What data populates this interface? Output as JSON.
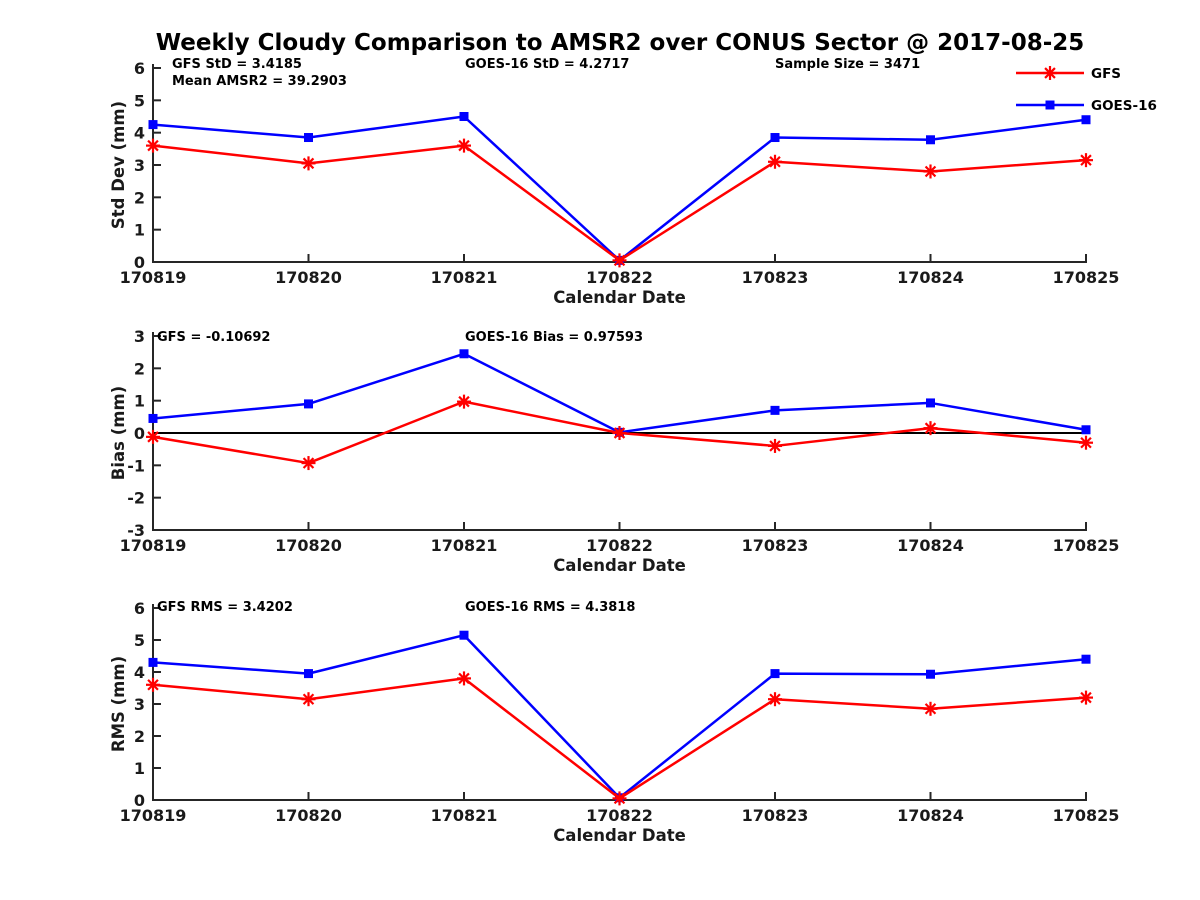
{
  "title": "Weekly Cloudy Comparison to AMSR2 over CONUS Sector @ 2017-08-25",
  "colors": {
    "gfs": "#ff0000",
    "goes16": "#0000ff",
    "axis": "#262626",
    "zero_line": "#000000",
    "background": "#ffffff"
  },
  "legend": {
    "position": "top-right",
    "entries": [
      {
        "label": "GFS",
        "color": "#ff0000",
        "marker": "asterisk"
      },
      {
        "label": "GOES-16",
        "color": "#0000ff",
        "marker": "square"
      }
    ]
  },
  "chart_data": [
    {
      "type": "line",
      "panel": "std_dev",
      "xlabel": "Calendar Date",
      "ylabel": "Std Dev (mm)",
      "ylim": [
        0,
        6
      ],
      "yticks": [
        0,
        1,
        2,
        3,
        4,
        5,
        6
      ],
      "grid": false,
      "zero_line": false,
      "categories": [
        "170819",
        "170820",
        "170821",
        "170822",
        "170823",
        "170824",
        "170825"
      ],
      "series": [
        {
          "name": "GFS",
          "color": "#ff0000",
          "marker": "asterisk",
          "values": [
            3.6,
            3.05,
            3.6,
            0.05,
            3.1,
            2.8,
            3.15
          ]
        },
        {
          "name": "GOES-16",
          "color": "#0000ff",
          "marker": "square",
          "values": [
            4.25,
            3.85,
            4.5,
            0.05,
            3.85,
            3.78,
            4.4
          ]
        }
      ],
      "annotations": [
        {
          "slot": "left",
          "text": "GFS StD = 3.4185"
        },
        {
          "slot": "left2",
          "text": "Mean AMSR2 = 39.2903"
        },
        {
          "slot": "center",
          "text": "GOES-16 StD = 4.2717"
        },
        {
          "slot": "right",
          "text": "Sample Size = 3471"
        }
      ]
    },
    {
      "type": "line",
      "panel": "bias",
      "xlabel": "Calendar Date",
      "ylabel": "Bias (mm)",
      "ylim": [
        -3,
        3
      ],
      "yticks": [
        -3,
        -2,
        -1,
        0,
        1,
        2,
        3
      ],
      "grid": false,
      "zero_line": true,
      "categories": [
        "170819",
        "170820",
        "170821",
        "170822",
        "170823",
        "170824",
        "170825"
      ],
      "series": [
        {
          "name": "GFS",
          "color": "#ff0000",
          "marker": "asterisk",
          "values": [
            -0.12,
            -0.93,
            0.97,
            0.0,
            -0.4,
            0.15,
            -0.3
          ]
        },
        {
          "name": "GOES-16",
          "color": "#0000ff",
          "marker": "square",
          "values": [
            0.45,
            0.9,
            2.45,
            0.02,
            0.7,
            0.93,
            0.1
          ]
        }
      ],
      "annotations": [
        {
          "slot": "left",
          "text": "GFS = -0.10692"
        },
        {
          "slot": "center",
          "text": "GOES-16 Bias  = 0.97593"
        }
      ]
    },
    {
      "type": "line",
      "panel": "rms",
      "xlabel": "Calendar Date",
      "ylabel": "RMS (mm)",
      "ylim": [
        0,
        6
      ],
      "yticks": [
        0,
        1,
        2,
        3,
        4,
        5,
        6
      ],
      "grid": false,
      "zero_line": false,
      "categories": [
        "170819",
        "170820",
        "170821",
        "170822",
        "170823",
        "170824",
        "170825"
      ],
      "series": [
        {
          "name": "GFS",
          "color": "#ff0000",
          "marker": "asterisk",
          "values": [
            3.6,
            3.15,
            3.8,
            0.05,
            3.15,
            2.85,
            3.2
          ]
        },
        {
          "name": "GOES-16",
          "color": "#0000ff",
          "marker": "square",
          "values": [
            4.3,
            3.95,
            5.15,
            0.07,
            3.95,
            3.93,
            4.4
          ]
        }
      ],
      "annotations": [
        {
          "slot": "left",
          "text": "GFS RMS = 3.4202"
        },
        {
          "slot": "center",
          "text": "GOES-16 RMS = 4.3818"
        }
      ]
    }
  ]
}
